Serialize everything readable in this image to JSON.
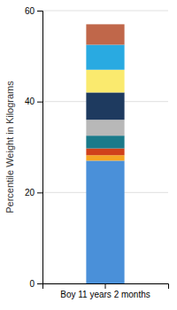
{
  "chart_data": {
    "type": "bar",
    "stacked": true,
    "categories": [
      "Boy 11 years 2 months"
    ],
    "series": [
      {
        "color": "#4A90D9",
        "values": [
          27.0
        ]
      },
      {
        "color": "#F5A623",
        "values": [
          1.2
        ]
      },
      {
        "color": "#D0411B",
        "values": [
          1.5
        ]
      },
      {
        "color": "#1A7A8A",
        "values": [
          2.8
        ]
      },
      {
        "color": "#B8B8B8",
        "values": [
          3.5
        ]
      },
      {
        "color": "#1E3A5F",
        "values": [
          6.0
        ]
      },
      {
        "color": "#FAEA6E",
        "values": [
          5.0
        ]
      },
      {
        "color": "#29AAE1",
        "values": [
          5.5
        ]
      },
      {
        "color": "#C0674A",
        "values": [
          4.5
        ]
      }
    ],
    "ylim": [
      0,
      60
    ],
    "yticks": [
      0,
      20,
      40,
      60
    ],
    "ylabel": "Percentile Weight in Kilograms",
    "grid": true
  }
}
